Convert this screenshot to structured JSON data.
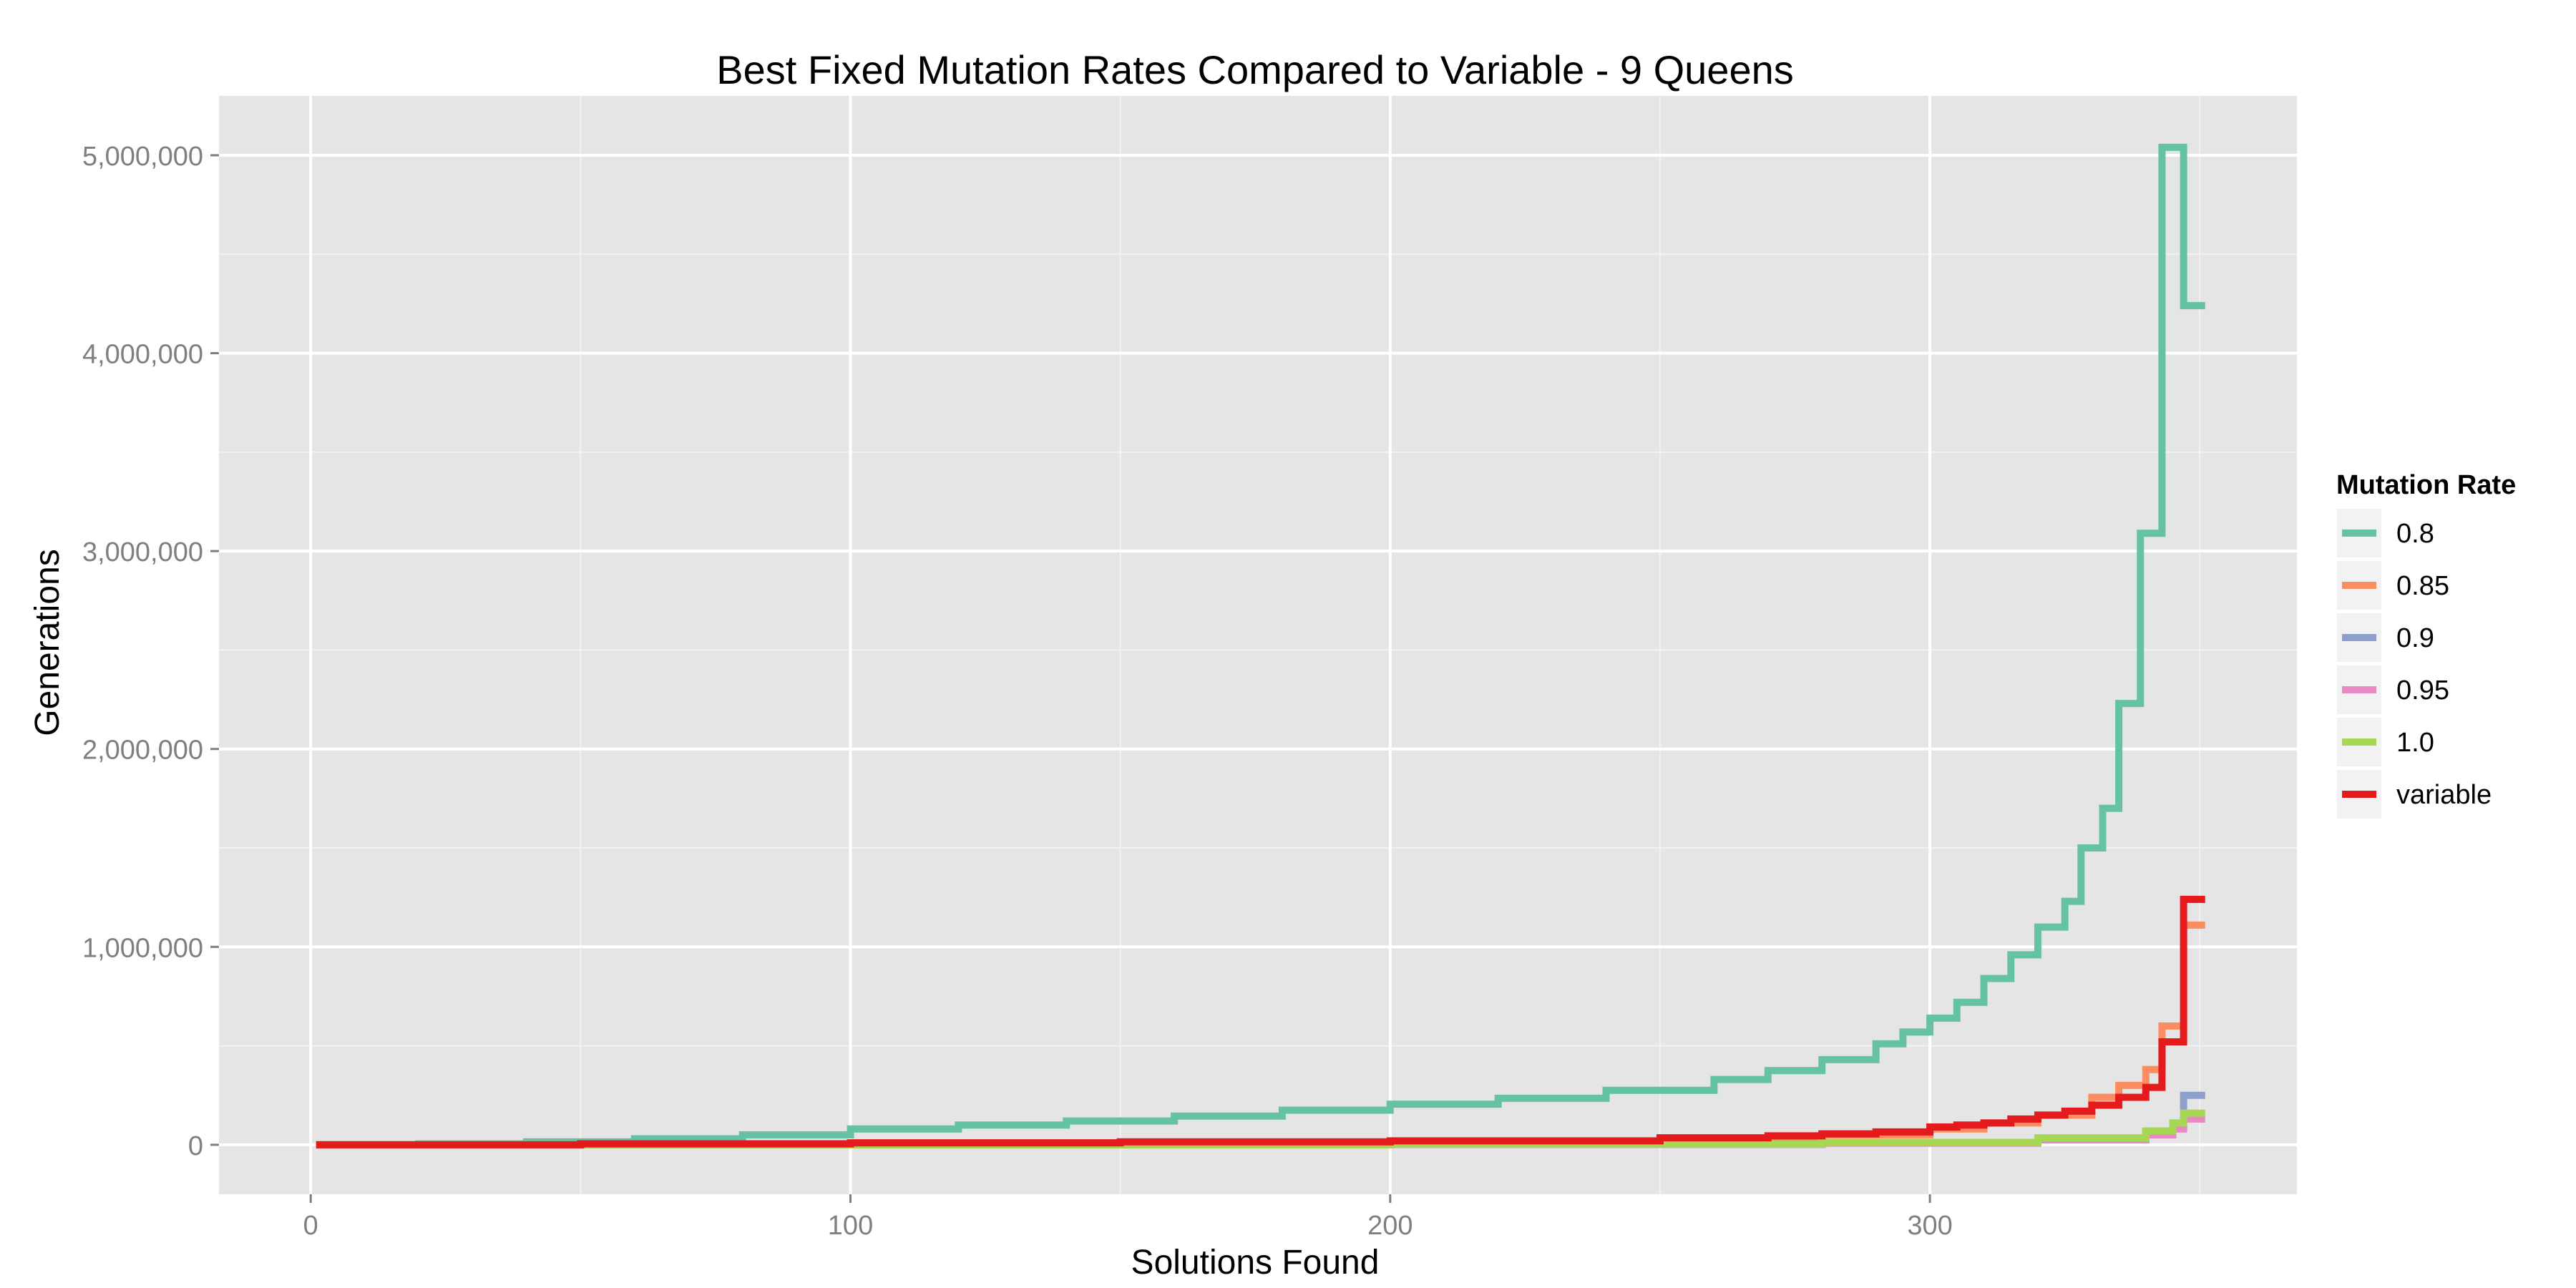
{
  "chart_data": {
    "type": "line",
    "title": "Best Fixed Mutation Rates Compared to Variable - 9 Queens",
    "xlabel": "Solutions Found",
    "ylabel": "Generations",
    "xlim": [
      -17,
      368
    ],
    "ylim": [
      -250000,
      5300000
    ],
    "x_ticks": [
      0,
      100,
      200,
      300
    ],
    "x_tick_labels": [
      "0",
      "100",
      "200",
      "300"
    ],
    "y_ticks": [
      0,
      1000000,
      2000000,
      3000000,
      4000000,
      5000000
    ],
    "y_tick_labels": [
      "0",
      "1,000,000",
      "2,000,000",
      "3,000,000",
      "4,000,000",
      "5,000,000"
    ],
    "grid": true,
    "panel_background": "#E5E5E5",
    "grid_major_color": "#FFFFFF",
    "grid_minor_color": "#F2F2F2",
    "legend": {
      "title": "Mutation Rate",
      "position": "right"
    },
    "series": [
      {
        "name": "0.8",
        "color": "#66C2A5",
        "step": true,
        "points": [
          [
            1,
            0
          ],
          [
            20,
            5000
          ],
          [
            40,
            15000
          ],
          [
            60,
            30000
          ],
          [
            80,
            50000
          ],
          [
            100,
            80000
          ],
          [
            120,
            100000
          ],
          [
            140,
            120000
          ],
          [
            160,
            145000
          ],
          [
            180,
            175000
          ],
          [
            200,
            205000
          ],
          [
            220,
            235000
          ],
          [
            240,
            275000
          ],
          [
            260,
            330000
          ],
          [
            270,
            375000
          ],
          [
            280,
            430000
          ],
          [
            290,
            510000
          ],
          [
            295,
            570000
          ],
          [
            300,
            640000
          ],
          [
            305,
            720000
          ],
          [
            310,
            840000
          ],
          [
            315,
            960000
          ],
          [
            320,
            1100000
          ],
          [
            325,
            1230000
          ],
          [
            328,
            1500000
          ],
          [
            332,
            1700000
          ],
          [
            335,
            2230000
          ],
          [
            339,
            3090000
          ],
          [
            343,
            5040000
          ],
          [
            346,
            5040000
          ],
          [
            347,
            4240000
          ],
          [
            351,
            4240000
          ]
        ]
      },
      {
        "name": "0.85",
        "color": "#FC8D62",
        "step": true,
        "points": [
          [
            1,
            0
          ],
          [
            100,
            3000
          ],
          [
            200,
            8000
          ],
          [
            250,
            25000
          ],
          [
            280,
            50000
          ],
          [
            300,
            80000
          ],
          [
            310,
            110000
          ],
          [
            320,
            150000
          ],
          [
            330,
            240000
          ],
          [
            335,
            300000
          ],
          [
            340,
            380000
          ],
          [
            343,
            600000
          ],
          [
            346,
            600000
          ],
          [
            347,
            1110000
          ],
          [
            351,
            1110000
          ]
        ]
      },
      {
        "name": "0.9",
        "color": "#8DA0CB",
        "step": true,
        "points": [
          [
            1,
            0
          ],
          [
            200,
            2000
          ],
          [
            280,
            10000
          ],
          [
            320,
            30000
          ],
          [
            340,
            60000
          ],
          [
            345,
            100000
          ],
          [
            347,
            250000
          ],
          [
            351,
            250000
          ]
        ]
      },
      {
        "name": "0.95",
        "color": "#E78AC3",
        "step": true,
        "points": [
          [
            1,
            0
          ],
          [
            200,
            2000
          ],
          [
            280,
            8000
          ],
          [
            320,
            25000
          ],
          [
            340,
            50000
          ],
          [
            345,
            80000
          ],
          [
            347,
            130000
          ],
          [
            351,
            130000
          ]
        ]
      },
      {
        "name": "1.0",
        "color": "#A6D854",
        "step": true,
        "points": [
          [
            1,
            0
          ],
          [
            200,
            3000
          ],
          [
            280,
            12000
          ],
          [
            320,
            35000
          ],
          [
            340,
            70000
          ],
          [
            345,
            110000
          ],
          [
            347,
            160000
          ],
          [
            351,
            160000
          ]
        ]
      },
      {
        "name": "variable",
        "color": "#E41A1C",
        "step": true,
        "points": [
          [
            1,
            0
          ],
          [
            50,
            5000
          ],
          [
            100,
            10000
          ],
          [
            150,
            15000
          ],
          [
            200,
            20000
          ],
          [
            250,
            35000
          ],
          [
            270,
            45000
          ],
          [
            280,
            55000
          ],
          [
            290,
            65000
          ],
          [
            300,
            90000
          ],
          [
            305,
            100000
          ],
          [
            310,
            110000
          ],
          [
            315,
            130000
          ],
          [
            320,
            150000
          ],
          [
            325,
            170000
          ],
          [
            330,
            200000
          ],
          [
            335,
            240000
          ],
          [
            340,
            290000
          ],
          [
            343,
            520000
          ],
          [
            346,
            520000
          ],
          [
            347,
            1240000
          ],
          [
            351,
            1240000
          ]
        ]
      }
    ]
  }
}
